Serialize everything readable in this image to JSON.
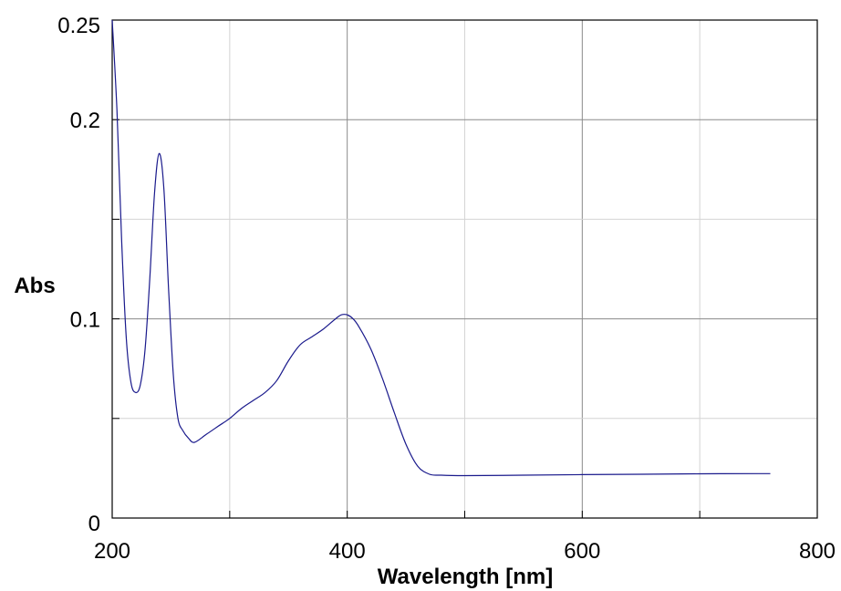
{
  "chart_data": {
    "type": "line",
    "title": "",
    "xlabel": "Wavelength [nm]",
    "ylabel": "Abs",
    "xlim": [
      200,
      800
    ],
    "ylim": [
      0,
      0.25
    ],
    "x_ticks": [
      {
        "value": 200,
        "label": "200"
      },
      {
        "value": 400,
        "label": "400"
      },
      {
        "value": 600,
        "label": "600"
      },
      {
        "value": 800,
        "label": "800"
      }
    ],
    "y_ticks": [
      {
        "value": 0,
        "label": "0"
      },
      {
        "value": 0.1,
        "label": "0.1"
      },
      {
        "value": 0.2,
        "label": "0.2"
      },
      {
        "value": 0.25,
        "label": "0.25"
      }
    ],
    "x_minor_step": 100,
    "y_minor_step": 0.05,
    "grid": true,
    "series": [
      {
        "color": "#1a1a8c",
        "x": [
          200,
          204,
          208,
          212,
          216,
          220,
          224,
          228,
          232,
          236,
          240,
          244,
          248,
          252,
          256,
          260,
          265,
          270,
          280,
          290,
          300,
          310,
          320,
          330,
          340,
          350,
          360,
          370,
          380,
          390,
          395,
          400,
          405,
          410,
          420,
          430,
          440,
          450,
          460,
          470,
          480,
          500,
          550,
          600,
          650,
          700,
          750,
          760
        ],
        "y": [
          0.25,
          0.205,
          0.14,
          0.09,
          0.068,
          0.063,
          0.067,
          0.085,
          0.12,
          0.163,
          0.183,
          0.165,
          0.115,
          0.072,
          0.05,
          0.044,
          0.04,
          0.038,
          0.042,
          0.046,
          0.05,
          0.055,
          0.059,
          0.063,
          0.069,
          0.079,
          0.087,
          0.091,
          0.095,
          0.1,
          0.102,
          0.102,
          0.1,
          0.096,
          0.085,
          0.07,
          0.053,
          0.037,
          0.026,
          0.022,
          0.0215,
          0.0213,
          0.0215,
          0.0218,
          0.022,
          0.0222,
          0.0223,
          0.0223
        ]
      }
    ]
  }
}
